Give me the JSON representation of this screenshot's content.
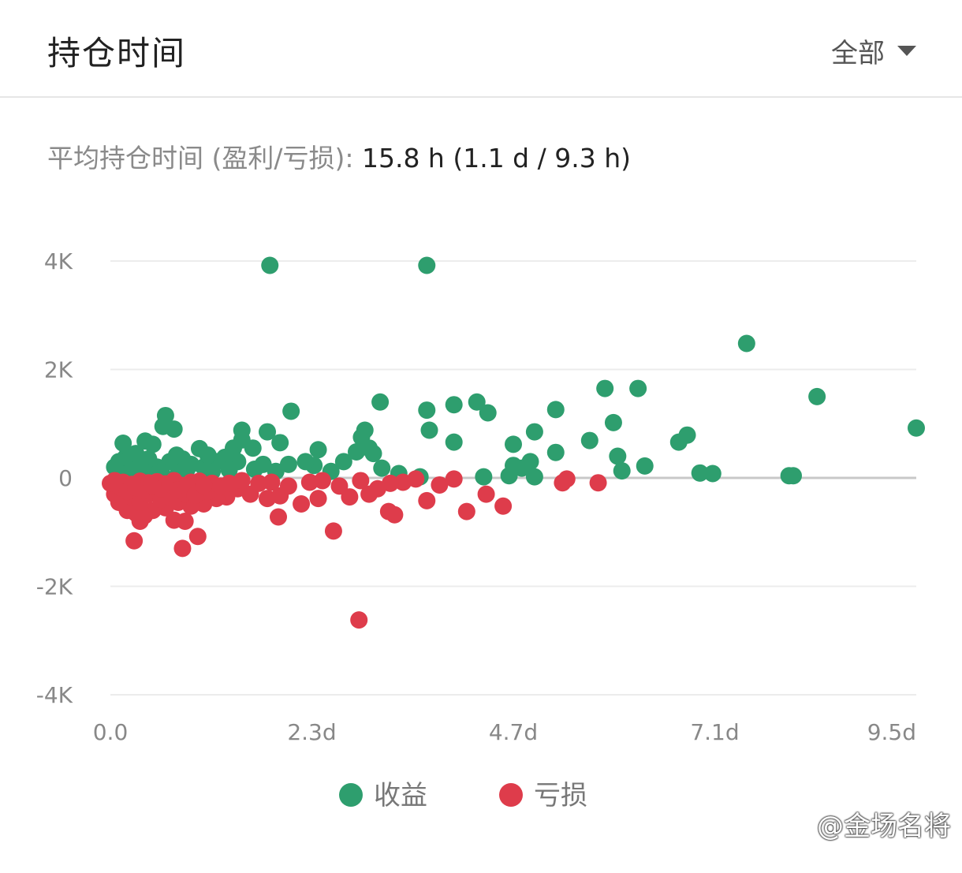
{
  "header": {
    "title": "持仓时间",
    "filter_label": "全部"
  },
  "summary": {
    "label": "平均持仓时间 (盈利/亏损): ",
    "value": "15.8 h (1.1 d / 9.3 h)"
  },
  "watermark": "@金场名将",
  "chart_data": {
    "type": "scatter",
    "title": "",
    "xlabel": "",
    "ylabel": "",
    "xlim": [
      0,
      9.5
    ],
    "ylim": [
      -4000,
      4000
    ],
    "x_ticks": [
      "0.0",
      "2.3d",
      "4.7d",
      "7.1d",
      "9.5d"
    ],
    "x_tick_values": [
      0,
      2.375,
      4.75,
      7.125,
      9.5
    ],
    "y_ticks": [
      "4K",
      "2K",
      "0",
      "-2K",
      "-4K"
    ],
    "y_tick_values": [
      4000,
      2000,
      0,
      -2000,
      -4000
    ],
    "grid": true,
    "legend_position": "bottom-center",
    "series": [
      {
        "name": "收益",
        "color": "#2e9e6e",
        "points": [
          [
            1.88,
            3920
          ],
          [
            3.73,
            3920
          ],
          [
            7.5,
            2480
          ],
          [
            5.83,
            1650
          ],
          [
            6.22,
            1650
          ],
          [
            8.33,
            1500
          ],
          [
            9.5,
            920
          ],
          [
            0.65,
            1150
          ],
          [
            0.75,
            900
          ],
          [
            0.62,
            950
          ],
          [
            2.13,
            1230
          ],
          [
            3.18,
            1400
          ],
          [
            3.73,
            1250
          ],
          [
            4.05,
            1350
          ],
          [
            4.32,
            1400
          ],
          [
            4.45,
            1200
          ],
          [
            5.25,
            1260
          ],
          [
            5.93,
            1020
          ],
          [
            3.76,
            880
          ],
          [
            3.0,
            880
          ],
          [
            1.85,
            850
          ],
          [
            1.55,
            880
          ],
          [
            2.0,
            650
          ],
          [
            0.15,
            640
          ],
          [
            0.41,
            680
          ],
          [
            0.5,
            620
          ],
          [
            1.05,
            540
          ],
          [
            1.45,
            550
          ],
          [
            1.55,
            700
          ],
          [
            1.68,
            550
          ],
          [
            2.45,
            520
          ],
          [
            2.96,
            750
          ],
          [
            3.05,
            550
          ],
          [
            4.05,
            660
          ],
          [
            4.75,
            620
          ],
          [
            5.0,
            850
          ],
          [
            5.65,
            690
          ],
          [
            6.7,
            660
          ],
          [
            6.8,
            790
          ],
          [
            5.25,
            470
          ],
          [
            5.98,
            400
          ],
          [
            6.3,
            220
          ],
          [
            6.03,
            130
          ],
          [
            6.95,
            90
          ],
          [
            7.1,
            80
          ],
          [
            8.0,
            40
          ],
          [
            8.05,
            40
          ],
          [
            4.95,
            300
          ],
          [
            4.85,
            180
          ],
          [
            5.0,
            20
          ],
          [
            4.7,
            40
          ],
          [
            4.75,
            230
          ],
          [
            4.4,
            20
          ],
          [
            3.65,
            20
          ],
          [
            3.4,
            80
          ],
          [
            3.2,
            180
          ],
          [
            3.1,
            450
          ],
          [
            2.9,
            480
          ],
          [
            2.75,
            300
          ],
          [
            2.6,
            120
          ],
          [
            2.4,
            230
          ],
          [
            2.3,
            300
          ],
          [
            2.1,
            250
          ],
          [
            1.95,
            120
          ],
          [
            1.8,
            250
          ],
          [
            1.7,
            160
          ],
          [
            1.5,
            300
          ],
          [
            1.35,
            380
          ],
          [
            1.25,
            300
          ],
          [
            1.2,
            120
          ],
          [
            1.1,
            200
          ],
          [
            0.95,
            250
          ],
          [
            0.85,
            350
          ],
          [
            0.78,
            420
          ],
          [
            0.7,
            300
          ],
          [
            0.55,
            200
          ],
          [
            0.45,
            350
          ],
          [
            0.35,
            250
          ],
          [
            0.25,
            150
          ],
          [
            0.18,
            380
          ],
          [
            0.1,
            300
          ],
          [
            0.05,
            200
          ],
          [
            0.3,
            450
          ],
          [
            0.6,
            100
          ],
          [
            0.9,
            150
          ],
          [
            1.15,
            420
          ],
          [
            1.4,
            150
          ],
          [
            0.8,
            80
          ],
          [
            0.2,
            80
          ],
          [
            0.4,
            120
          ]
        ]
      },
      {
        "name": "亏损",
        "color": "#de3c4b",
        "points": [
          [
            2.93,
            -2620
          ],
          [
            0.85,
            -1300
          ],
          [
            1.03,
            -1080
          ],
          [
            0.28,
            -1160
          ],
          [
            2.63,
            -980
          ],
          [
            0.35,
            -800
          ],
          [
            0.75,
            -780
          ],
          [
            0.88,
            -800
          ],
          [
            1.98,
            -720
          ],
          [
            3.35,
            -680
          ],
          [
            3.28,
            -620
          ],
          [
            4.2,
            -620
          ],
          [
            4.43,
            -300
          ],
          [
            4.63,
            -520
          ],
          [
            3.73,
            -420
          ],
          [
            3.88,
            -130
          ],
          [
            4.05,
            -20
          ],
          [
            2.25,
            -480
          ],
          [
            2.45,
            -380
          ],
          [
            2.82,
            -350
          ],
          [
            3.05,
            -300
          ],
          [
            3.15,
            -200
          ],
          [
            3.45,
            -80
          ],
          [
            3.6,
            -20
          ],
          [
            5.33,
            -90
          ],
          [
            5.38,
            -20
          ],
          [
            5.75,
            -90
          ],
          [
            2.0,
            -330
          ],
          [
            1.85,
            -380
          ],
          [
            1.65,
            -300
          ],
          [
            1.5,
            -200
          ],
          [
            1.37,
            -350
          ],
          [
            1.25,
            -380
          ],
          [
            1.1,
            -480
          ],
          [
            0.95,
            -520
          ],
          [
            0.65,
            -550
          ],
          [
            0.5,
            -600
          ],
          [
            0.4,
            -700
          ],
          [
            0.3,
            -650
          ],
          [
            0.2,
            -600
          ],
          [
            0.1,
            -450
          ],
          [
            0.05,
            -300
          ],
          [
            0.0,
            -100
          ],
          [
            0.15,
            -200
          ],
          [
            0.25,
            -350
          ],
          [
            0.35,
            -450
          ],
          [
            0.45,
            -300
          ],
          [
            0.55,
            -250
          ],
          [
            0.6,
            -400
          ],
          [
            0.7,
            -350
          ],
          [
            0.8,
            -450
          ],
          [
            0.9,
            -300
          ],
          [
            1.0,
            -200
          ],
          [
            1.15,
            -250
          ],
          [
            1.2,
            -100
          ],
          [
            1.3,
            -150
          ],
          [
            1.4,
            -100
          ],
          [
            1.55,
            -50
          ],
          [
            1.75,
            -100
          ],
          [
            1.9,
            -80
          ],
          [
            2.1,
            -150
          ],
          [
            2.35,
            -80
          ],
          [
            2.5,
            -50
          ],
          [
            2.7,
            -150
          ],
          [
            2.95,
            -50
          ],
          [
            3.3,
            -100
          ],
          [
            0.05,
            -50
          ],
          [
            0.15,
            -80
          ],
          [
            0.25,
            -120
          ],
          [
            0.35,
            -60
          ],
          [
            0.45,
            -90
          ],
          [
            0.55,
            -70
          ],
          [
            0.65,
            -110
          ],
          [
            0.75,
            -50
          ],
          [
            0.85,
            -140
          ],
          [
            0.95,
            -80
          ],
          [
            1.05,
            -60
          ],
          [
            0.1,
            -150
          ],
          [
            0.2,
            -250
          ],
          [
            0.3,
            -180
          ],
          [
            0.4,
            -230
          ],
          [
            0.5,
            -150
          ],
          [
            0.6,
            -200
          ],
          [
            0.7,
            -120
          ],
          [
            0.8,
            -220
          ],
          [
            0.9,
            -160
          ],
          [
            1.0,
            -320
          ],
          [
            1.1,
            -140
          ]
        ]
      }
    ]
  }
}
